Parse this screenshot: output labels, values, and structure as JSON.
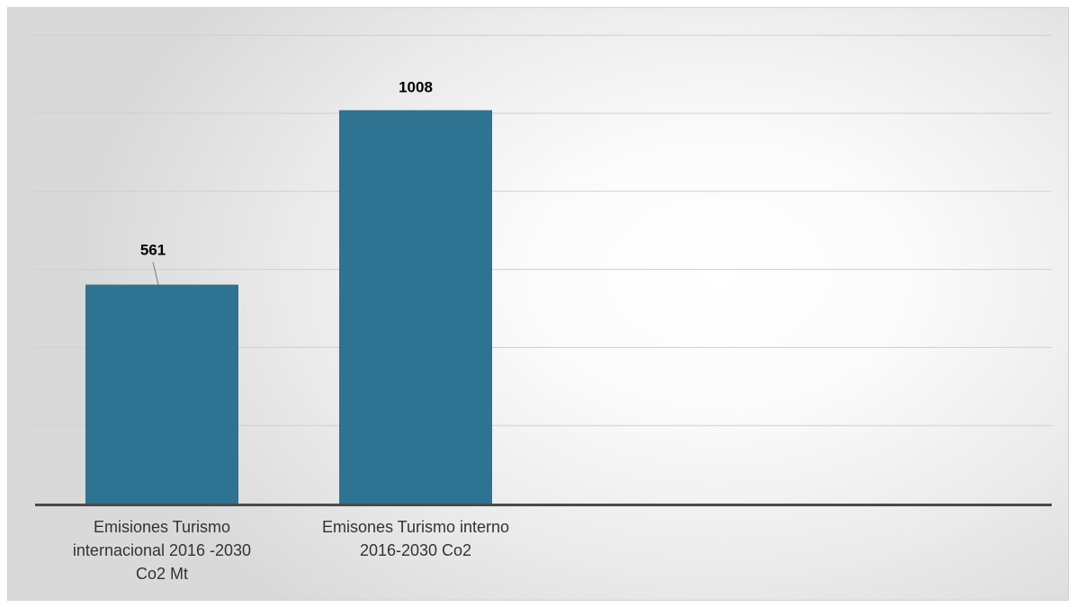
{
  "chart_data": {
    "type": "bar",
    "categories": [
      "Emisiones Turismo internacional 2016 -2030 Co2 Mt",
      "Emisones Turismo interno 2016-2030 Co2"
    ],
    "category_lines": [
      [
        "Emisiones Turismo",
        "internacional 2016 -2030",
        "Co2 Mt"
      ],
      [
        "Emisones Turismo interno",
        "2016-2030 Co2"
      ]
    ],
    "values": [
      561,
      1008
    ],
    "data_labels": [
      "561",
      "1008"
    ],
    "title": "",
    "xlabel": "",
    "ylabel": "",
    "ylim": [
      0,
      1200
    ],
    "grid": true,
    "gridline_count": 6,
    "legend": "none",
    "y_tick_labels_shown": false,
    "bar_color": "#2e7391",
    "gridline_color": "#cfcfcf",
    "axis_color": "#4a4a4a"
  }
}
